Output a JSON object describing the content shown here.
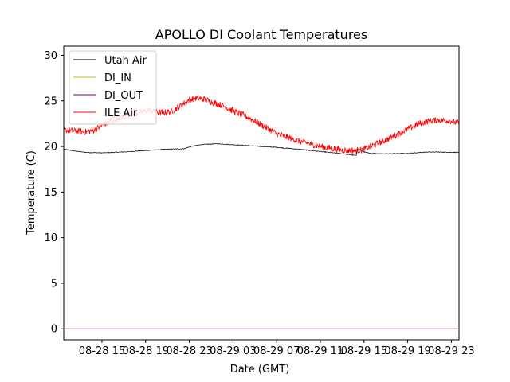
{
  "chart_data": {
    "type": "line",
    "title": "APOLLO DI Coolant Temperatures",
    "xlabel": "Date (GMT)",
    "ylabel": "Temperature (C)",
    "ylim": [
      -1.2,
      31
    ],
    "xlim_hours": [
      11.5,
      47.7
    ],
    "yticks": [
      0,
      5,
      10,
      15,
      20,
      25,
      30
    ],
    "xticks": [
      {
        "label": "08-28 15",
        "hour": 15
      },
      {
        "label": "08-28 19",
        "hour": 19
      },
      {
        "label": "08-28 23",
        "hour": 23
      },
      {
        "label": "08-29 03",
        "hour": 27
      },
      {
        "label": "08-29 07",
        "hour": 31
      },
      {
        "label": "08-29 11",
        "hour": 35
      },
      {
        "label": "08-29 15",
        "hour": 39
      },
      {
        "label": "08-29 19",
        "hour": 43
      },
      {
        "label": "08-29 23",
        "hour": 47
      }
    ],
    "legend_position": "top-left",
    "series": [
      {
        "name": "Utah Air",
        "color": "#000000",
        "noise": 0.04,
        "points": [
          [
            11.5,
            19.7
          ],
          [
            12.5,
            19.5
          ],
          [
            13.5,
            19.35
          ],
          [
            15,
            19.3
          ],
          [
            17,
            19.4
          ],
          [
            19,
            19.55
          ],
          [
            21,
            19.7
          ],
          [
            22.5,
            19.75
          ],
          [
            23,
            19.95
          ],
          [
            24,
            20.2
          ],
          [
            25.5,
            20.3
          ],
          [
            27,
            20.2
          ],
          [
            29,
            20.05
          ],
          [
            31,
            19.9
          ],
          [
            33,
            19.7
          ],
          [
            35,
            19.45
          ],
          [
            37,
            19.2
          ],
          [
            38,
            19.05
          ],
          [
            38.3,
            19.0
          ],
          [
            38.4,
            19.8
          ],
          [
            39,
            19.4
          ],
          [
            39.5,
            19.25
          ],
          [
            41,
            19.2
          ],
          [
            43,
            19.25
          ],
          [
            45,
            19.4
          ],
          [
            47.7,
            19.35
          ]
        ]
      },
      {
        "name": "DI_IN",
        "color": "#bcbd22",
        "noise": 0,
        "points": [
          [
            11.5,
            0
          ],
          [
            47.7,
            0
          ]
        ]
      },
      {
        "name": "DI_OUT",
        "color": "#800080",
        "noise": 0,
        "points": [
          [
            11.5,
            0
          ],
          [
            47.7,
            0
          ]
        ]
      },
      {
        "name": "ILE Air",
        "color": "#ff0000",
        "noise": 0.35,
        "points": [
          [
            11.5,
            21.8
          ],
          [
            12.5,
            21.7
          ],
          [
            13.5,
            21.6
          ],
          [
            14.3,
            21.8
          ],
          [
            15,
            22.3
          ],
          [
            16,
            22.9
          ],
          [
            17,
            23.3
          ],
          [
            18,
            23.6
          ],
          [
            19.3,
            24.0
          ],
          [
            20.3,
            23.7
          ],
          [
            21.3,
            23.8
          ],
          [
            22,
            24.3
          ],
          [
            22.8,
            25.0
          ],
          [
            23.5,
            25.3
          ],
          [
            24.3,
            25.2
          ],
          [
            25,
            24.9
          ],
          [
            26,
            24.5
          ],
          [
            27,
            23.9
          ],
          [
            28,
            23.4
          ],
          [
            29,
            22.8
          ],
          [
            30,
            22.1
          ],
          [
            31,
            21.4
          ],
          [
            32,
            21.0
          ],
          [
            33,
            20.6
          ],
          [
            34,
            20.3
          ],
          [
            35,
            20.0
          ],
          [
            36,
            19.8
          ],
          [
            37,
            19.6
          ],
          [
            38,
            19.55
          ],
          [
            38.7,
            19.6
          ],
          [
            39.3,
            19.85
          ],
          [
            40,
            20.2
          ],
          [
            41,
            20.7
          ],
          [
            42,
            21.3
          ],
          [
            43,
            21.9
          ],
          [
            44,
            22.5
          ],
          [
            45,
            22.8
          ],
          [
            46,
            22.9
          ],
          [
            47,
            22.8
          ],
          [
            47.7,
            22.5
          ]
        ]
      }
    ]
  }
}
